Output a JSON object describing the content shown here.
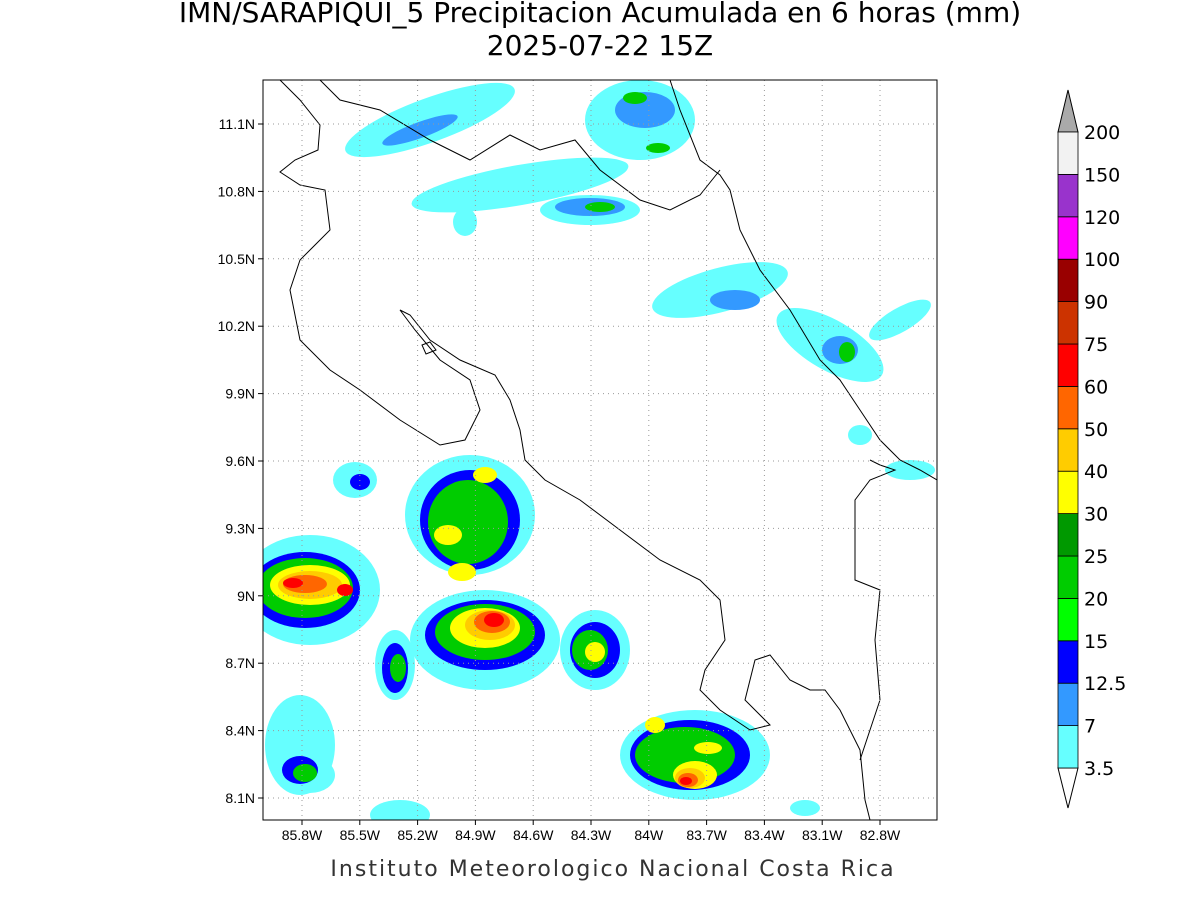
{
  "title": "IMN/SARAPIQUI_5 Precipitacion Acumulada en 6 horas (mm)",
  "subtitle": "2025-07-22 15Z",
  "map": {
    "lon_ticks": [
      "85.8W",
      "85.5W",
      "85.2W",
      "84.9W",
      "84.6W",
      "84.3W",
      "84W",
      "83.7W",
      "83.4W",
      "83.1W",
      "82.8W"
    ],
    "lat_ticks": [
      "11.1N",
      "10.8N",
      "10.5N",
      "10.2N",
      "9.9N",
      "9.6N",
      "9.3N",
      "9N",
      "8.7N",
      "8.4N",
      "8.1N"
    ]
  },
  "colorbar": {
    "levels": [
      3.5,
      7,
      12.5,
      15,
      20,
      25,
      30,
      40,
      50,
      60,
      75,
      90,
      100,
      120,
      150,
      200
    ],
    "colors": [
      "#66ffff",
      "#3399ff",
      "#0000ff",
      "#00ff00",
      "#00cc00",
      "#009900",
      "#ffff00",
      "#ffcc00",
      "#ff6600",
      "#ff0000",
      "#cc3300",
      "#990000",
      "#ff00ff",
      "#9933cc",
      "#f2f2f2"
    ],
    "under_color": "#ffffff",
    "over_color": "#aaaaaa"
  },
  "footer": "Instituto Meteorologico Nacional Costa Rica"
}
